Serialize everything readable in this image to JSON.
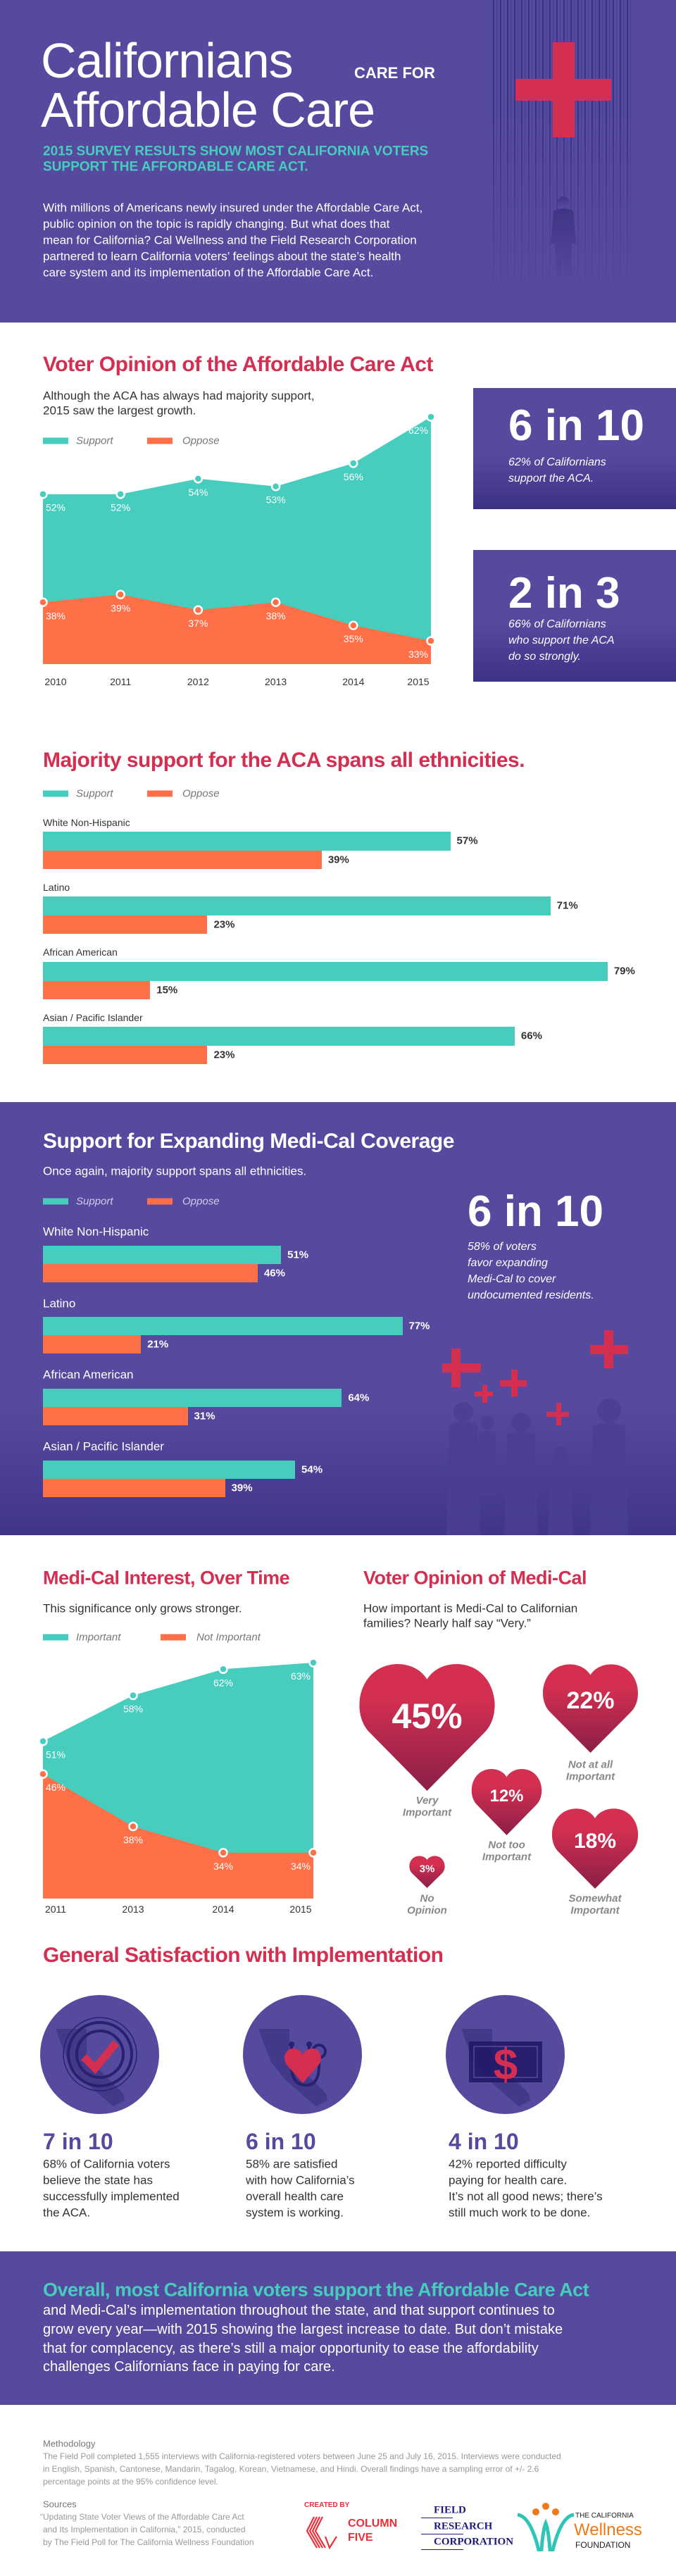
{
  "colors": {
    "purple": "#564a9f",
    "teal": "#47cdbd",
    "orange": "#ff6f48",
    "red": "#d42f50"
  },
  "header": {
    "title_line1": "Californians",
    "title_small": "CARE FOR",
    "title_line2": "Affordable Care",
    "subtitle_lines": [
      "2015 SURVEY RESULTS SHOW MOST CALIFORNIA VOTERS",
      "SUPPORT THE AFFORDABLE CARE ACT."
    ],
    "intro_lines": [
      "With millions of Americans newly insured under the Affordable Care Act,",
      "public opinion on the topic is rapidly changing. But what does that",
      "mean for California? Cal Wellness and the Field Research Corporation",
      "partnered to learn California voters’ feelings about the state’s health",
      "care system and its implementation of the Affordable Care Act."
    ]
  },
  "aca_section": {
    "title": "Voter Opinion of the Affordable Care Act",
    "subtitle_lines": [
      "Although the ACA has always had majority support,",
      "2015 saw the largest growth."
    ],
    "legend": [
      "Support",
      "Oppose"
    ],
    "stat1": {
      "number": "6 in 10",
      "lines": [
        "62% of Californians",
        "support the ACA."
      ]
    },
    "stat2": {
      "number": "2 in 3",
      "lines": [
        "66% of Californians",
        "who support the ACA",
        "do so strongly."
      ]
    }
  },
  "ethnicity_section": {
    "title": "Majority support for the ACA spans all ethnicities.",
    "legend": [
      "Support",
      "Oppose"
    ]
  },
  "medical_expansion_section": {
    "title": "Support for Expanding Medi-Cal Coverage",
    "subtitle": "Once again, majority support spans all ethnicities.",
    "legend": [
      "Support",
      "Oppose"
    ],
    "stat": {
      "number": "6 in 10",
      "lines": [
        "58% of voters",
        "favor expanding",
        "Medi-Cal to cover",
        "undocumented residents."
      ]
    }
  },
  "interest_section": {
    "title": "Medi-Cal Interest, Over Time",
    "subtitle": "This significance only grows stronger.",
    "legend": [
      "Important",
      "Not Important"
    ]
  },
  "opinion_section": {
    "title": "Voter Opinion of Medi-Cal",
    "subtitle_lines": [
      "How important is Medi-Cal to Californian",
      "families? Nearly half say “Very.”"
    ]
  },
  "satisfaction_section": {
    "title": "General Satisfaction with Implementation",
    "items": [
      {
        "icon": "california-checkmark-icon",
        "number": "7 in 10",
        "lines": [
          "68% of California voters",
          "believe the state has",
          "successfully implemented",
          "the ACA."
        ]
      },
      {
        "icon": "california-stethoscope-heart-icon",
        "number": "6 in 10",
        "lines": [
          "58% are satisfied",
          "with how California’s",
          "overall health care",
          "system is working."
        ]
      },
      {
        "icon": "california-dollar-bill-icon",
        "number": "4 in 10",
        "lines": [
          "42% reported difficulty",
          "paying for health care.",
          "It’s not all good news; there’s",
          "still much work to be done."
        ]
      }
    ]
  },
  "conclusion": {
    "heading": "Overall, most California voters support the Affordable Care Act",
    "lines": [
      "and Medi-Cal’s implementation throughout the state, and that support continues to",
      "grow every year—with 2015 showing the largest increase to date. But don’t mistake",
      "that for complacency, as there’s still a major opportunity to ease the affordability",
      "challenges Californians face in paying for care."
    ]
  },
  "footer": {
    "methodology_title": "Methodology",
    "methodology_lines": [
      "The Field Poll completed 1,555 interviews with California-registered voters between June 25 and July 16, 2015. Interviews were conducted",
      "in English, Spanish, Cantonese, Mandarin, Tagalog, Korean, Vietnamese, and Hindi. Overall findings have a sampling error of +/- 2.6",
      "percentage points at the 95% confidence level."
    ],
    "sources_title": "Sources",
    "sources_lines": [
      "“Updating State Voter Views of the Affordable Care Act",
      "and Its Implementation in California,” 2015, conducted",
      "by The Field Poll for The California Wellness Foundation"
    ],
    "created_by": "CREATED BY",
    "logos": {
      "column_five": [
        "COLUMN",
        "FIVE"
      ],
      "field_research": [
        "FIELD",
        "RESEARCH",
        "CORPORATION"
      ],
      "wellness": [
        "THE CALIFORNIA",
        "Wellness",
        "FOUNDATION"
      ]
    }
  },
  "chart_data": [
    {
      "type": "area",
      "title": "Voter Opinion of the Affordable Care Act",
      "categories": [
        "2010",
        "2011",
        "2012",
        "2013",
        "2014",
        "2015"
      ],
      "series": [
        {
          "name": "Support",
          "values": [
            52,
            52,
            54,
            53,
            56,
            62
          ],
          "color": "#47cdbd"
        },
        {
          "name": "Oppose",
          "values": [
            38,
            39,
            37,
            38,
            35,
            33
          ],
          "color": "#ff6f48"
        }
      ],
      "value_suffix": "%",
      "ylim": [
        30,
        62
      ],
      "grid": false,
      "legend": "top-left"
    },
    {
      "type": "bar",
      "orientation": "horizontal",
      "title": "Majority support for the ACA spans all ethnicities.",
      "categories": [
        "White Non-Hispanic",
        "Latino",
        "African American",
        "Asian / Pacific Islander"
      ],
      "series": [
        {
          "name": "Support",
          "values": [
            57,
            71,
            79,
            66
          ],
          "color": "#47cdbd"
        },
        {
          "name": "Oppose",
          "values": [
            39,
            23,
            15,
            23
          ],
          "color": "#ff6f48"
        }
      ],
      "value_suffix": "%",
      "legend": "top-left"
    },
    {
      "type": "bar",
      "orientation": "horizontal",
      "title": "Support for Expanding Medi-Cal Coverage",
      "categories": [
        "White Non-Hispanic",
        "Latino",
        "African American",
        "Asian / Pacific Islander"
      ],
      "series": [
        {
          "name": "Support",
          "values": [
            51,
            77,
            64,
            54
          ],
          "color": "#47cdbd"
        },
        {
          "name": "Oppose",
          "values": [
            46,
            21,
            31,
            39
          ],
          "color": "#ff6f48"
        }
      ],
      "value_suffix": "%",
      "legend": "top-left"
    },
    {
      "type": "area",
      "title": "Medi-Cal Interest, Over Time",
      "categories": [
        "2011",
        "2013",
        "2014",
        "2015"
      ],
      "series": [
        {
          "name": "Important",
          "values": [
            51,
            58,
            62,
            63
          ],
          "color": "#47cdbd"
        },
        {
          "name": "Not Important",
          "values": [
            46,
            38,
            34,
            34
          ],
          "color": "#ff6f48"
        }
      ],
      "value_suffix": "%",
      "ylim": [
        27,
        63
      ],
      "grid": false,
      "legend": "top-left"
    },
    {
      "type": "bubble",
      "shape": "heart",
      "title": "Voter Opinion of Medi-Cal",
      "categories": [
        "Very Important",
        "Not at all Important",
        "Not too Important",
        "Somewhat Important",
        "No Opinion"
      ],
      "values": [
        45,
        22,
        12,
        18,
        3
      ],
      "value_suffix": "%",
      "color": "#d42f50"
    }
  ]
}
